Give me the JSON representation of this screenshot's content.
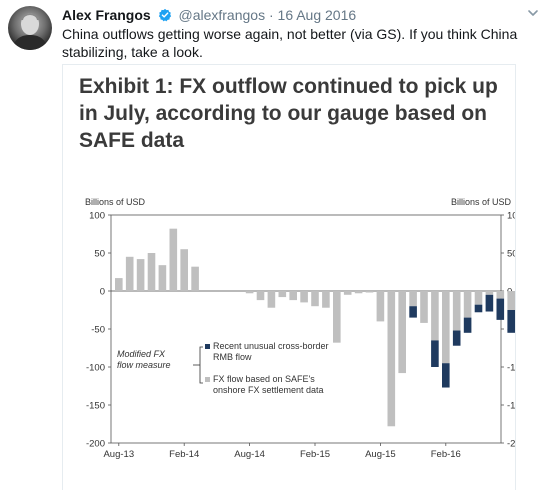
{
  "tweet": {
    "author_name": "Alex Frangos",
    "handle": "@alexfrangos",
    "separator": "·",
    "date": "16 Aug 2016",
    "text": "China outflows getting worse again, not better (via GS). If you think China stabilizing, take a look.",
    "icons": {
      "verified": "verified-badge-icon",
      "menu": "chevron-down-icon"
    },
    "colors": {
      "verified": "#1da1f2",
      "secondary_text": "#657786"
    }
  },
  "exhibit_title": "Exhibit 1: FX outflow continued to pick up in July, according to our gauge based on SAFE data",
  "chart_data": {
    "type": "bar",
    "left_axis_title": "Billions of USD",
    "right_axis_title": "Billions of USD",
    "ylim": [
      -200,
      100
    ],
    "yticks": [
      100,
      50,
      0,
      -50,
      -100,
      -150,
      -200
    ],
    "x_tick_labels": [
      "Aug-13",
      "Feb-14",
      "Aug-14",
      "Feb-15",
      "Aug-15",
      "Feb-16"
    ],
    "x_tick_indices": [
      0,
      6,
      12,
      18,
      24,
      30
    ],
    "legend_group_label": "Modified FX flow measure",
    "series": [
      {
        "name": "FX flow based on SAFE's onshore FX settlement data",
        "color": "#bfbfbf",
        "values": [
          17,
          45,
          42,
          50,
          34,
          82,
          55,
          32,
          0,
          0,
          0,
          0,
          -3,
          -12,
          -22,
          -8,
          -12,
          -15,
          -20,
          -22,
          -68,
          -5,
          -3,
          -2,
          -40,
          -178,
          -108,
          -20,
          -42,
          -65,
          -95,
          -52,
          -35,
          -18,
          -5,
          -10,
          -25,
          -5
        ]
      },
      {
        "name": "Recent unusual cross-border RMB flow",
        "color": "#1f3a5f",
        "values": [
          0,
          0,
          0,
          0,
          0,
          0,
          0,
          0,
          0,
          0,
          0,
          0,
          0,
          0,
          0,
          0,
          0,
          0,
          0,
          0,
          0,
          0,
          0,
          0,
          0,
          0,
          0,
          -15,
          0,
          -35,
          -32,
          -20,
          -20,
          -10,
          -22,
          -28,
          -30,
          -45
        ]
      }
    ]
  }
}
